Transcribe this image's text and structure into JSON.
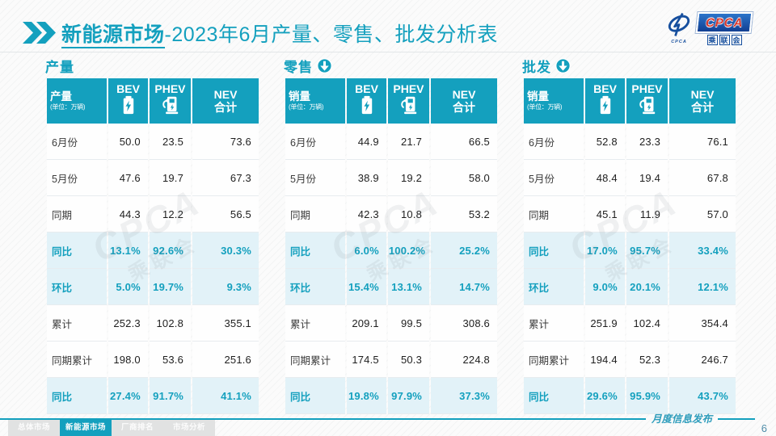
{
  "slide": {
    "title": {
      "highlight": "新能源市场",
      "rest": "-2023年6月产量、零售、批发分析表"
    },
    "logo": {
      "acronym": "CPCA",
      "chinese": "乘联会",
      "emblem_caption": "CPCA"
    }
  },
  "columns": {
    "corner_unit": "(单位：万辆)",
    "bev_label": "BEV",
    "phev_label": "PHEV",
    "nev_label_line1": "NEV",
    "nev_label_line2": "合计",
    "bev_icon": "battery-icon",
    "phev_icon": "charging-station-icon"
  },
  "tables": [
    {
      "id": "production",
      "section_title": "产量",
      "show_down_icon": false,
      "corner_label": "产量",
      "rows": [
        {
          "label": "6月份",
          "bev": "50.0",
          "phev": "23.5",
          "nev": "73.6",
          "highlight": false
        },
        {
          "label": "5月份",
          "bev": "47.6",
          "phev": "19.7",
          "nev": "67.3",
          "highlight": false
        },
        {
          "label": "同期",
          "bev": "44.3",
          "phev": "12.2",
          "nev": "56.5",
          "highlight": false
        },
        {
          "label": "同比",
          "bev": "13.1%",
          "phev": "92.6%",
          "nev": "30.3%",
          "highlight": true
        },
        {
          "label": "环比",
          "bev": "5.0%",
          "phev": "19.7%",
          "nev": "9.3%",
          "highlight": true
        },
        {
          "label": "累计",
          "bev": "252.3",
          "phev": "102.8",
          "nev": "355.1",
          "highlight": false
        },
        {
          "label": "同期累计",
          "bev": "198.0",
          "phev": "53.6",
          "nev": "251.6",
          "highlight": false
        },
        {
          "label": "同比",
          "bev": "27.4%",
          "phev": "91.7%",
          "nev": "41.1%",
          "highlight": true
        }
      ]
    },
    {
      "id": "retail",
      "section_title": "零售",
      "show_down_icon": true,
      "corner_label": "销量",
      "rows": [
        {
          "label": "6月份",
          "bev": "44.9",
          "phev": "21.7",
          "nev": "66.5",
          "highlight": false
        },
        {
          "label": "5月份",
          "bev": "38.9",
          "phev": "19.2",
          "nev": "58.0",
          "highlight": false
        },
        {
          "label": "同期",
          "bev": "42.3",
          "phev": "10.8",
          "nev": "53.2",
          "highlight": false
        },
        {
          "label": "同比",
          "bev": "6.0%",
          "phev": "100.2%",
          "nev": "25.2%",
          "highlight": true
        },
        {
          "label": "环比",
          "bev": "15.4%",
          "phev": "13.1%",
          "nev": "14.7%",
          "highlight": true
        },
        {
          "label": "累计",
          "bev": "209.1",
          "phev": "99.5",
          "nev": "308.6",
          "highlight": false
        },
        {
          "label": "同期累计",
          "bev": "174.5",
          "phev": "50.3",
          "nev": "224.8",
          "highlight": false
        },
        {
          "label": "同比",
          "bev": "19.8%",
          "phev": "97.9%",
          "nev": "37.3%",
          "highlight": true
        }
      ]
    },
    {
      "id": "wholesale",
      "section_title": "批发",
      "show_down_icon": true,
      "corner_label": "销量",
      "rows": [
        {
          "label": "6月份",
          "bev": "52.8",
          "phev": "23.3",
          "nev": "76.1",
          "highlight": false
        },
        {
          "label": "5月份",
          "bev": "48.4",
          "phev": "19.4",
          "nev": "67.8",
          "highlight": false
        },
        {
          "label": "同期",
          "bev": "45.1",
          "phev": "11.9",
          "nev": "57.0",
          "highlight": false
        },
        {
          "label": "同比",
          "bev": "17.0%",
          "phev": "95.7%",
          "nev": "33.4%",
          "highlight": true
        },
        {
          "label": "环比",
          "bev": "9.0%",
          "phev": "20.1%",
          "nev": "12.1%",
          "highlight": true
        },
        {
          "label": "累计",
          "bev": "251.9",
          "phev": "102.4",
          "nev": "354.4",
          "highlight": false
        },
        {
          "label": "同期累计",
          "bev": "194.4",
          "phev": "52.3",
          "nev": "246.7",
          "highlight": false
        },
        {
          "label": "同比",
          "bev": "29.6%",
          "phev": "95.9%",
          "nev": "43.7%",
          "highlight": true
        }
      ]
    }
  ],
  "footer": {
    "tabs": [
      {
        "name": "total-market",
        "label": "总体市场",
        "active": false
      },
      {
        "name": "nev-market",
        "label": "新能源市场",
        "active": true
      },
      {
        "name": "oem-ranking",
        "label": "厂商排名",
        "active": false
      },
      {
        "name": "market-analysis",
        "label": "市场分析",
        "active": false
      }
    ],
    "ribbon_label": "月度信息发布",
    "page_number": "6"
  },
  "watermark": {
    "line1": "CPCA",
    "line2": "乘联会"
  },
  "colors": {
    "teal": "#14A0BE",
    "highlight_row_bg": "#E2F2F8",
    "logo_blue": "#164F9E",
    "logo_red": "#D8372C"
  }
}
